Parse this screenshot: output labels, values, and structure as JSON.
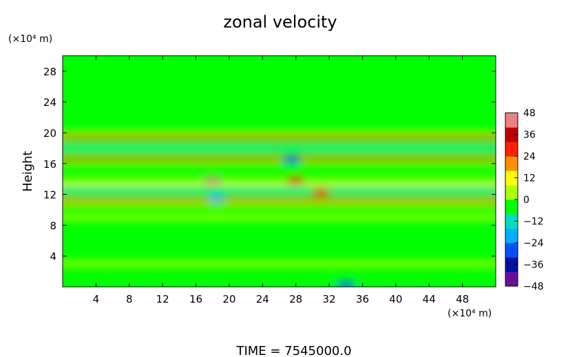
{
  "chart_data": {
    "type": "heatmap",
    "title": "zonal velocity",
    "ylabel": "Height",
    "x_unit_label": "(×10⁴ m)",
    "y_unit_label": "(×10⁴ m)",
    "xlim": [
      0,
      52
    ],
    "ylim": [
      0,
      30
    ],
    "x_ticks": [
      4,
      8,
      12,
      16,
      20,
      24,
      28,
      32,
      36,
      40,
      44,
      48
    ],
    "y_ticks": [
      4,
      8,
      12,
      16,
      20,
      24,
      28
    ],
    "colorbar": {
      "ticks": [
        48,
        36,
        24,
        12,
        0,
        -12,
        -24,
        -36,
        -48
      ],
      "range": [
        -48,
        48
      ],
      "colors": [
        "#6a0d9c",
        "#0010a0",
        "#0050ff",
        "#00b0ff",
        "#00e0c0",
        "#00ff00",
        "#b0ff00",
        "#ffff00",
        "#ff9000",
        "#ff2000",
        "#c00000",
        "#f08080"
      ]
    },
    "field_note": "upper layer ~0; alternating bands between heights 8 and 21",
    "bands": [
      {
        "y": 20.5,
        "v": -4
      },
      {
        "y": 19.4,
        "v": 18
      },
      {
        "y": 18.0,
        "v": -12
      },
      {
        "y": 16.6,
        "v": 18
      },
      {
        "y": 15.3,
        "v": -8
      },
      {
        "y": 13.5,
        "v": 14
      },
      {
        "y": 12.5,
        "v": -10
      },
      {
        "y": 11.2,
        "v": 16
      },
      {
        "y": 10.3,
        "v": -8
      },
      {
        "y": 9.0,
        "v": 6
      },
      {
        "y": 6.0,
        "v": -6
      },
      {
        "y": 3.0,
        "v": 6
      },
      {
        "y": 0.5,
        "v": -6
      }
    ],
    "spots": [
      {
        "x": 18,
        "y": 13.8,
        "v": 40
      },
      {
        "x": 27.5,
        "y": 16.5,
        "v": -32
      },
      {
        "x": 28,
        "y": 13.8,
        "v": 30
      },
      {
        "x": 18.5,
        "y": 11.5,
        "v": -22
      },
      {
        "x": 31,
        "y": 12.3,
        "v": 30
      },
      {
        "x": 34,
        "y": 0.3,
        "v": -30
      }
    ]
  },
  "footer": {
    "time_text": "TIME = 7545000.0"
  }
}
